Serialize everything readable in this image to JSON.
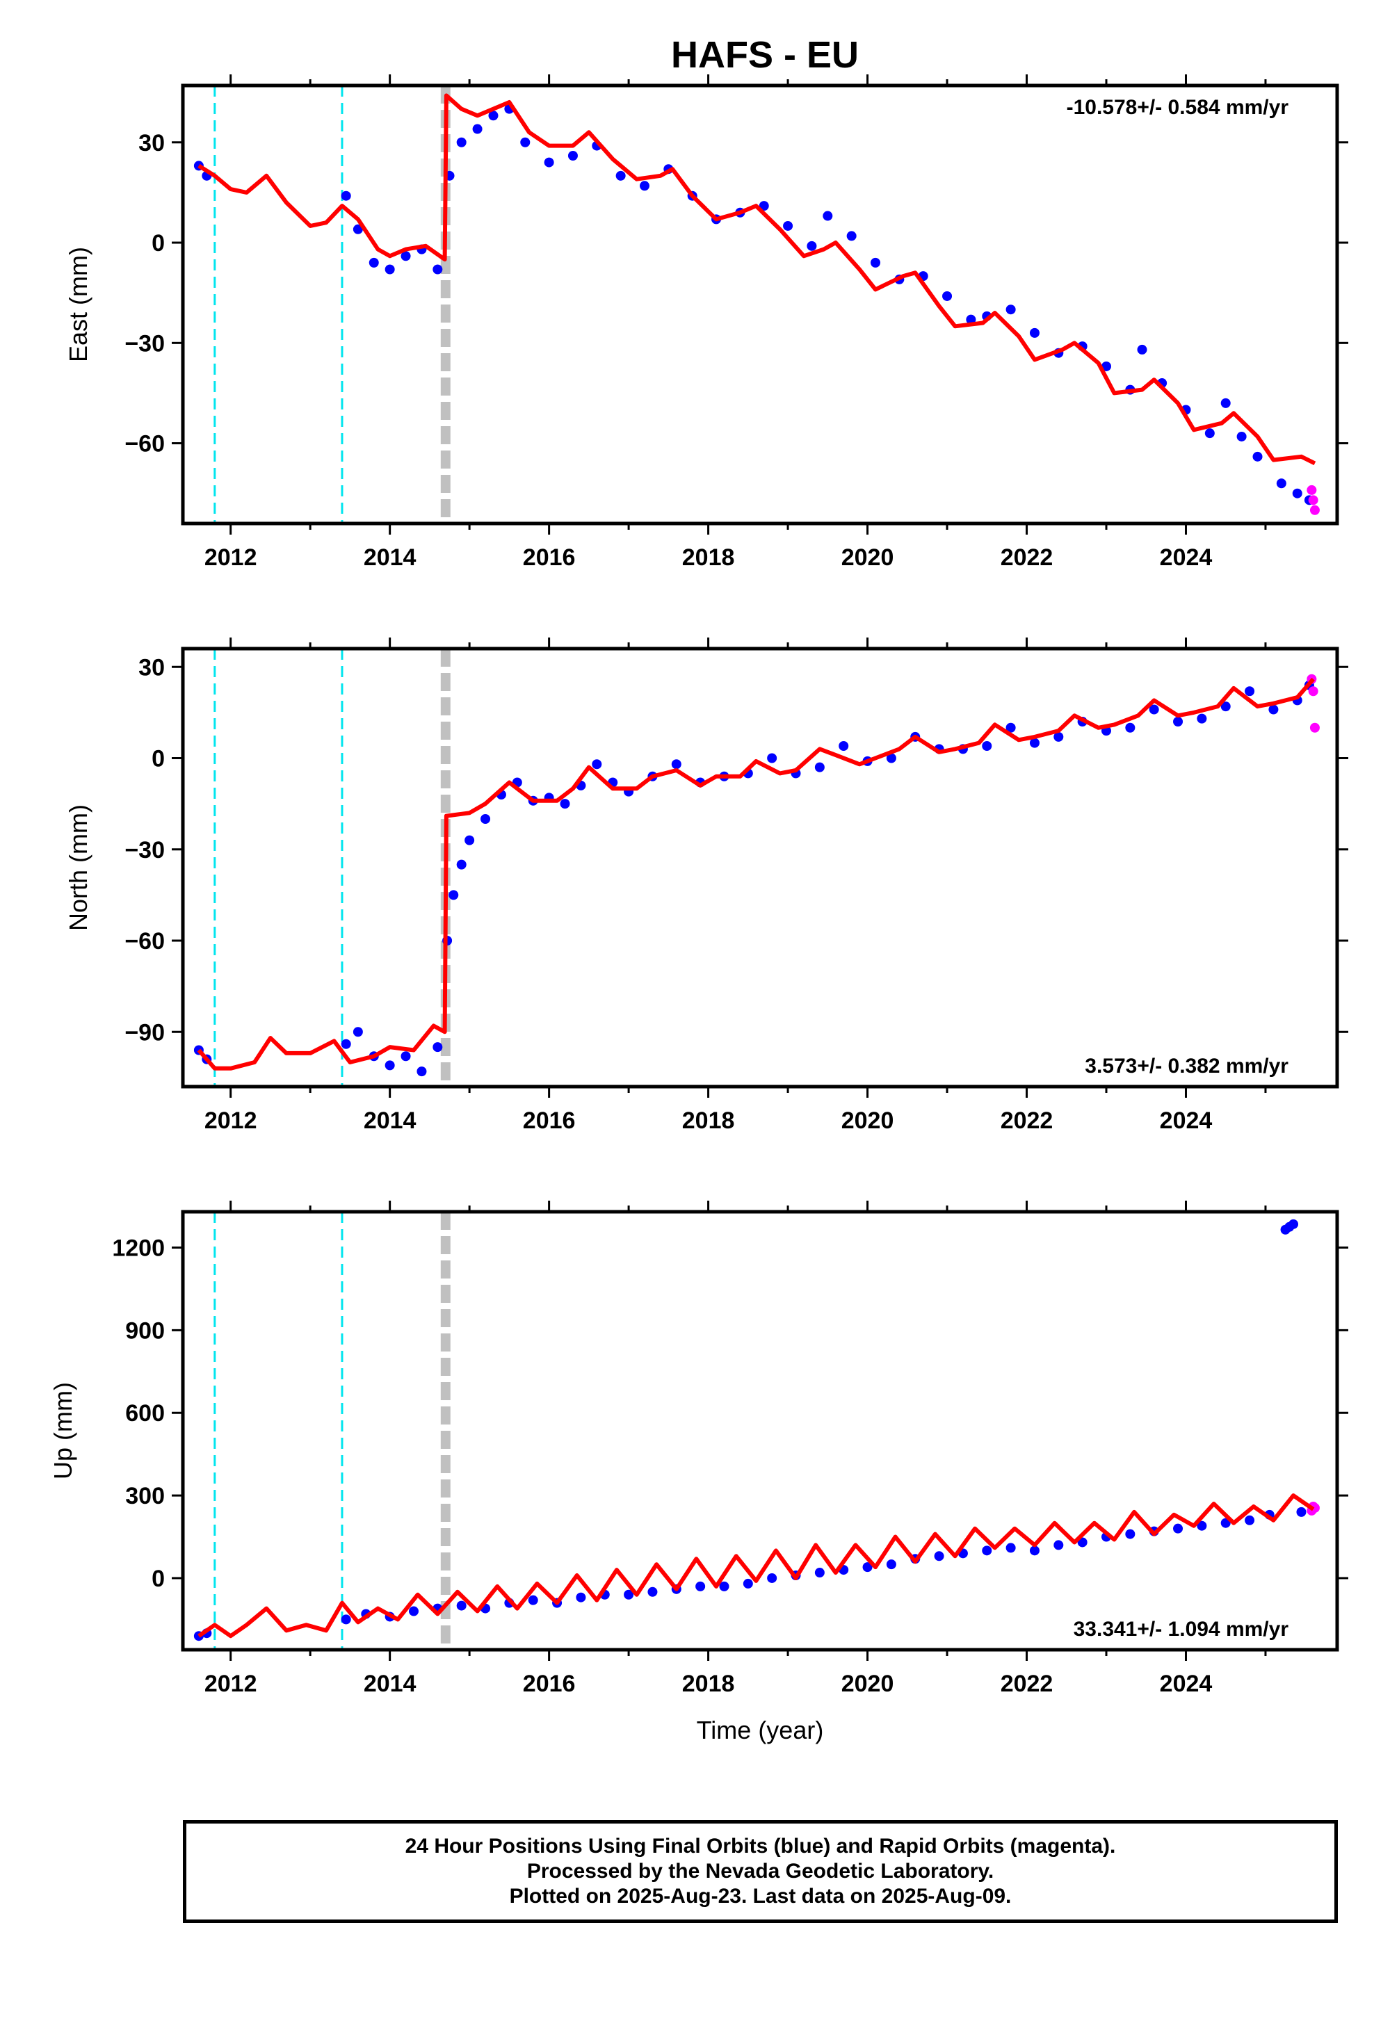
{
  "title": "HAFS - EU",
  "colors": {
    "final_orbits": "#0000ff",
    "rapid_orbits": "#ff00ff",
    "model": "#ff0000",
    "antenna_change": "#00e5ee",
    "earthquake": "#c0c0c0"
  },
  "chart_data": [
    {
      "type": "scatter",
      "component": "east",
      "ylabel": "East (mm)",
      "rate_label": "-10.578+/- 0.584 mm/yr",
      "xlim": [
        2011.4,
        2025.9
      ],
      "ylim": [
        -84,
        47
      ],
      "yticks": [
        30,
        0,
        -30,
        -60
      ],
      "ytick_labels": [
        "30",
        "0",
        "−30",
        "−60"
      ],
      "xticks": [
        2012,
        2014,
        2016,
        2018,
        2020,
        2022,
        2024
      ],
      "xtick_labels": [
        "2012",
        "2014",
        "2016",
        "2018",
        "2020",
        "2022",
        "2024"
      ],
      "vlines_dashed": [
        2011.8,
        2013.4
      ],
      "vline_thick": 2014.7,
      "model_x": [
        2011.6,
        2011.8,
        2012.0,
        2012.2,
        2012.45,
        2012.7,
        2013.0,
        2013.2,
        2013.4,
        2013.6,
        2013.85,
        2014.0,
        2014.2,
        2014.45,
        2014.69,
        2014.71,
        2014.9,
        2015.1,
        2015.5,
        2015.75,
        2016.0,
        2016.3,
        2016.5,
        2016.8,
        2017.1,
        2017.4,
        2017.55,
        2017.8,
        2018.1,
        2018.4,
        2018.6,
        2018.9,
        2019.2,
        2019.45,
        2019.6,
        2019.9,
        2020.1,
        2020.45,
        2020.6,
        2020.9,
        2021.1,
        2021.45,
        2021.6,
        2021.9,
        2022.1,
        2022.45,
        2022.6,
        2022.9,
        2023.1,
        2023.45,
        2023.6,
        2023.9,
        2024.1,
        2024.45,
        2024.6,
        2024.9,
        2025.1,
        2025.45,
        2025.62
      ],
      "model_y": [
        23,
        20,
        16,
        15,
        20,
        12,
        5,
        6,
        11,
        7,
        -2,
        -4,
        -2,
        -1,
        -5,
        44,
        40,
        38,
        42,
        33,
        29,
        29,
        33,
        25,
        19,
        20,
        22,
        14,
        7,
        9,
        11,
        4,
        -4,
        -2,
        0,
        -8,
        -14,
        -10,
        -9,
        -19,
        -25,
        -24,
        -21,
        -28,
        -35,
        -32,
        -30,
        -36,
        -45,
        -44,
        -41,
        -48,
        -56,
        -54,
        -51,
        -58,
        -65,
        -64,
        -66
      ],
      "final_x": [
        2011.6,
        2011.7,
        2013.45,
        2013.6,
        2013.8,
        2014.0,
        2014.2,
        2014.4,
        2014.6,
        2014.75,
        2014.9,
        2015.1,
        2015.3,
        2015.5,
        2015.7,
        2016.0,
        2016.3,
        2016.6,
        2016.9,
        2017.2,
        2017.5,
        2017.8,
        2018.1,
        2018.4,
        2018.7,
        2019.0,
        2019.3,
        2019.5,
        2019.8,
        2020.1,
        2020.4,
        2020.7,
        2021.0,
        2021.3,
        2021.5,
        2021.8,
        2022.1,
        2022.4,
        2022.7,
        2023.0,
        2023.3,
        2023.45,
        2023.7,
        2024.0,
        2024.3,
        2024.5,
        2024.7,
        2024.9,
        2025.2,
        2025.4,
        2025.55
      ],
      "final_y": [
        23,
        20,
        14,
        4,
        -6,
        -8,
        -4,
        -2,
        -8,
        20,
        30,
        34,
        38,
        40,
        30,
        24,
        26,
        29,
        20,
        17,
        22,
        14,
        7,
        9,
        11,
        5,
        -1,
        8,
        2,
        -6,
        -11,
        -10,
        -16,
        -23,
        -22,
        -20,
        -27,
        -33,
        -31,
        -37,
        -44,
        -32,
        -42,
        -50,
        -57,
        -48,
        -58,
        -64,
        -72,
        -75,
        -77
      ],
      "rapid_x": [
        2025.58,
        2025.6,
        2025.62
      ],
      "rapid_y": [
        -74,
        -77,
        -80
      ]
    },
    {
      "type": "scatter",
      "component": "north",
      "ylabel": "North (mm)",
      "rate_label": "3.573+/- 0.382 mm/yr",
      "xlim": [
        2011.4,
        2025.9
      ],
      "ylim": [
        -108,
        36
      ],
      "yticks": [
        30,
        0,
        -30,
        -60,
        -90
      ],
      "ytick_labels": [
        "30",
        "0",
        "−30",
        "−60",
        "−90"
      ],
      "xticks": [
        2012,
        2014,
        2016,
        2018,
        2020,
        2022,
        2024
      ],
      "xtick_labels": [
        "2012",
        "2014",
        "2016",
        "2018",
        "2020",
        "2022",
        "2024"
      ],
      "vlines_dashed": [
        2011.8,
        2013.4
      ],
      "vline_thick": 2014.7,
      "model_x": [
        2011.6,
        2011.8,
        2012.0,
        2012.3,
        2012.5,
        2012.7,
        2013.0,
        2013.3,
        2013.5,
        2013.8,
        2014.0,
        2014.3,
        2014.55,
        2014.69,
        2014.71,
        2015.0,
        2015.2,
        2015.5,
        2015.8,
        2016.1,
        2016.3,
        2016.5,
        2016.8,
        2017.1,
        2017.3,
        2017.6,
        2017.9,
        2018.1,
        2018.4,
        2018.6,
        2018.9,
        2019.1,
        2019.4,
        2019.6,
        2019.9,
        2020.1,
        2020.4,
        2020.6,
        2020.9,
        2021.1,
        2021.4,
        2021.6,
        2021.9,
        2022.1,
        2022.4,
        2022.6,
        2022.9,
        2023.1,
        2023.4,
        2023.6,
        2023.9,
        2024.1,
        2024.4,
        2024.6,
        2024.9,
        2025.1,
        2025.4,
        2025.6
      ],
      "model_y": [
        -96,
        -102,
        -102,
        -100,
        -92,
        -97,
        -97,
        -93,
        -100,
        -98,
        -95,
        -96,
        -88,
        -90,
        -19,
        -18,
        -15,
        -8,
        -14,
        -14,
        -10,
        -3,
        -10,
        -10,
        -6,
        -4,
        -9,
        -6,
        -6,
        -1,
        -5,
        -4,
        3,
        1,
        -2,
        0,
        3,
        7,
        2,
        3,
        5,
        11,
        6,
        7,
        9,
        14,
        10,
        11,
        14,
        19,
        14,
        15,
        17,
        23,
        17,
        18,
        20,
        26
      ],
      "final_x": [
        2011.6,
        2011.7,
        2013.45,
        2013.6,
        2013.8,
        2014.0,
        2014.2,
        2014.4,
        2014.6,
        2014.72,
        2014.8,
        2014.9,
        2015.0,
        2015.2,
        2015.4,
        2015.6,
        2015.8,
        2016.0,
        2016.2,
        2016.4,
        2016.6,
        2016.8,
        2017.0,
        2017.3,
        2017.6,
        2017.9,
        2018.2,
        2018.5,
        2018.8,
        2019.1,
        2019.4,
        2019.7,
        2020.0,
        2020.3,
        2020.6,
        2020.9,
        2021.2,
        2021.5,
        2021.8,
        2022.1,
        2022.4,
        2022.7,
        2023.0,
        2023.3,
        2023.6,
        2023.9,
        2024.2,
        2024.5,
        2024.8,
        2025.1,
        2025.4,
        2025.55
      ],
      "final_y": [
        -96,
        -99,
        -94,
        -90,
        -98,
        -101,
        -98,
        -103,
        -95,
        -60,
        -45,
        -35,
        -27,
        -20,
        -12,
        -8,
        -14,
        -13,
        -15,
        -9,
        -2,
        -8,
        -11,
        -6,
        -2,
        -8,
        -6,
        -5,
        0,
        -5,
        -3,
        4,
        -1,
        0,
        7,
        3,
        3,
        4,
        10,
        5,
        7,
        12,
        9,
        10,
        16,
        12,
        13,
        17,
        22,
        16,
        19,
        24
      ],
      "rapid_x": [
        2025.58,
        2025.6,
        2025.62
      ],
      "rapid_y": [
        26,
        22,
        10
      ]
    },
    {
      "type": "scatter",
      "component": "up",
      "ylabel": "Up (mm)",
      "rate_label": "33.341+/- 1.094 mm/yr",
      "xlim": [
        2011.4,
        2025.9
      ],
      "ylim": [
        -260,
        1330
      ],
      "yticks": [
        1200,
        900,
        600,
        300,
        0
      ],
      "ytick_labels": [
        "1200",
        "900",
        "600",
        "300",
        "0"
      ],
      "xticks": [
        2012,
        2014,
        2016,
        2018,
        2020,
        2022,
        2024
      ],
      "xtick_labels": [
        "2012",
        "2014",
        "2016",
        "2018",
        "2020",
        "2022",
        "2024"
      ],
      "xlabel": "Time (year)",
      "vlines_dashed": [
        2011.8,
        2013.4
      ],
      "vline_thick": 2014.7,
      "model_x": [
        2011.6,
        2011.8,
        2012.0,
        2012.2,
        2012.45,
        2012.7,
        2012.95,
        2013.2,
        2013.4,
        2013.6,
        2013.85,
        2014.1,
        2014.35,
        2014.6,
        2014.85,
        2015.1,
        2015.35,
        2015.6,
        2015.85,
        2016.1,
        2016.35,
        2016.6,
        2016.85,
        2017.1,
        2017.35,
        2017.6,
        2017.85,
        2018.1,
        2018.35,
        2018.6,
        2018.85,
        2019.1,
        2019.35,
        2019.6,
        2019.85,
        2020.1,
        2020.35,
        2020.6,
        2020.85,
        2021.1,
        2021.35,
        2021.6,
        2021.85,
        2022.1,
        2022.35,
        2022.6,
        2022.85,
        2023.1,
        2023.35,
        2023.6,
        2023.85,
        2024.1,
        2024.35,
        2024.6,
        2024.85,
        2025.1,
        2025.35,
        2025.6
      ],
      "model_y": [
        -210,
        -170,
        -210,
        -170,
        -110,
        -190,
        -170,
        -190,
        -90,
        -160,
        -110,
        -150,
        -60,
        -130,
        -50,
        -120,
        -30,
        -110,
        -20,
        -90,
        10,
        -80,
        30,
        -60,
        50,
        -40,
        70,
        -30,
        80,
        -10,
        100,
        0,
        120,
        20,
        120,
        40,
        150,
        60,
        160,
        80,
        180,
        110,
        180,
        120,
        200,
        130,
        200,
        140,
        240,
        160,
        230,
        190,
        270,
        200,
        260,
        210,
        300,
        250
      ],
      "final_x": [
        2011.6,
        2011.7,
        2013.45,
        2013.7,
        2014.0,
        2014.3,
        2014.6,
        2014.9,
        2015.2,
        2015.5,
        2015.8,
        2016.1,
        2016.4,
        2016.7,
        2017.0,
        2017.3,
        2017.6,
        2017.9,
        2018.2,
        2018.5,
        2018.8,
        2019.1,
        2019.4,
        2019.7,
        2020.0,
        2020.3,
        2020.6,
        2020.9,
        2021.2,
        2021.5,
        2021.8,
        2022.1,
        2022.4,
        2022.7,
        2023.0,
        2023.3,
        2023.6,
        2023.9,
        2024.2,
        2024.5,
        2024.8,
        2025.05,
        2025.25,
        2025.3,
        2025.35,
        2025.45
      ],
      "final_y": [
        -210,
        -200,
        -150,
        -130,
        -140,
        -120,
        -110,
        -100,
        -110,
        -90,
        -80,
        -90,
        -70,
        -60,
        -60,
        -50,
        -40,
        -30,
        -30,
        -20,
        0,
        10,
        20,
        30,
        40,
        50,
        70,
        80,
        90,
        100,
        110,
        100,
        120,
        130,
        150,
        160,
        170,
        180,
        190,
        200,
        210,
        230,
        1265,
        1275,
        1285,
        240
      ],
      "rapid_x": [
        2025.58,
        2025.6,
        2025.62
      ],
      "rapid_y": [
        245,
        260,
        255
      ]
    }
  ],
  "footer": {
    "line1": "24 Hour Positions Using Final Orbits (blue) and Rapid Orbits (magenta).",
    "line2": "Processed by the Nevada Geodetic Laboratory.",
    "line3": "Plotted on 2025-Aug-23. Last data on 2025-Aug-09."
  }
}
